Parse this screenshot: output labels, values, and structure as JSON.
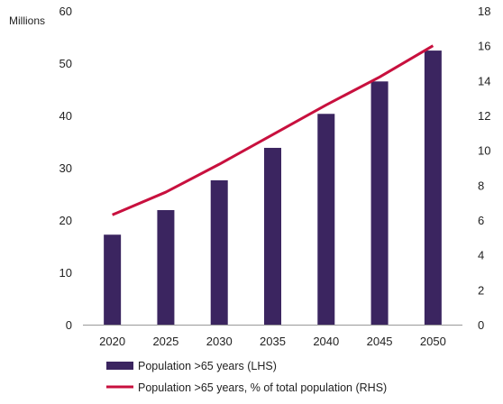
{
  "chart_data": {
    "type": "bar",
    "categories": [
      "2020",
      "2025",
      "2030",
      "2035",
      "2040",
      "2045",
      "2050"
    ],
    "series": [
      {
        "name": "Population >65 years (LHS)",
        "type": "bar",
        "axis": "left",
        "values": [
          17.2,
          21.9,
          27.6,
          33.8,
          40.3,
          46.5,
          52.4
        ]
      },
      {
        "name": "Population >65 years, % of total population (RHS)",
        "type": "line",
        "axis": "right",
        "values": [
          6.3,
          7.6,
          9.2,
          10.9,
          12.6,
          14.2,
          16.0
        ]
      }
    ],
    "left_axis": {
      "label": "Millions",
      "range": [
        0,
        60
      ],
      "ticks": [
        "0",
        "10",
        "20",
        "30",
        "40",
        "50",
        "60"
      ]
    },
    "right_axis": {
      "range": [
        0,
        18
      ],
      "ticks": [
        "0",
        "2",
        "4",
        "6",
        "8",
        "10",
        "12",
        "14",
        "16",
        "18"
      ]
    },
    "grid": false,
    "legend_position": "bottom-left"
  },
  "colors": {
    "bars": "#3b2560",
    "line": "#c8103e",
    "axis": "#999999",
    "text": "#222222"
  }
}
